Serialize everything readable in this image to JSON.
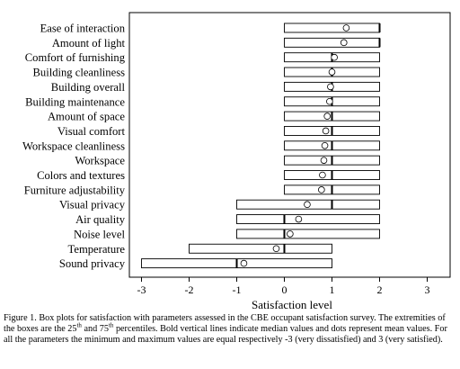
{
  "chart_data": {
    "type": "boxplot",
    "orientation": "horizontal",
    "xlabel": "Satisfaction level",
    "xlim": [
      -3,
      3
    ],
    "xticks": [
      "-3",
      "-2",
      "-1",
      "0",
      "1",
      "2",
      "3"
    ],
    "grid": false,
    "categories": [
      "Ease of interaction",
      "Amount of light",
      "Comfort of furnishing",
      "Building cleanliness",
      "Building overall",
      "Building maintenance",
      "Amount of space",
      "Visual comfort",
      "Workspace cleanliness",
      "Workspace",
      "Colors and textures",
      "Furniture adjustability",
      "Visual privacy",
      "Air quality",
      "Noise level",
      "Temperature",
      "Sound privacy"
    ],
    "q1": [
      0,
      0,
      0,
      0,
      0,
      0,
      0,
      0,
      0,
      0,
      0,
      0,
      -1,
      -1,
      -1,
      -2,
      -3
    ],
    "median": [
      2,
      2,
      1,
      1,
      1,
      1,
      1,
      1,
      1,
      1,
      1,
      1,
      1,
      0,
      0,
      0,
      -1
    ],
    "q3": [
      2,
      2,
      2,
      2,
      2,
      2,
      2,
      2,
      2,
      2,
      2,
      2,
      2,
      2,
      2,
      1,
      1
    ],
    "mean": [
      1.3,
      1.25,
      1.05,
      1.0,
      0.97,
      0.95,
      0.9,
      0.87,
      0.85,
      0.83,
      0.8,
      0.78,
      0.48,
      0.3,
      0.12,
      -0.17,
      -0.85
    ]
  },
  "caption": {
    "part1": "Figure 1. Box plots for satisfaction with parameters assessed in the CBE occupant satisfaction survey. The extremities of the boxes are the 25",
    "sup1": "th",
    "part2": " and 75",
    "sup2": "th",
    "part3": " percentiles. Bold vertical lines indicate median values and dots represent mean values. For all the parameters the minimum and maximum values are equal respectively -3 (very dissatisfied) and 3 (very satisfied)."
  }
}
